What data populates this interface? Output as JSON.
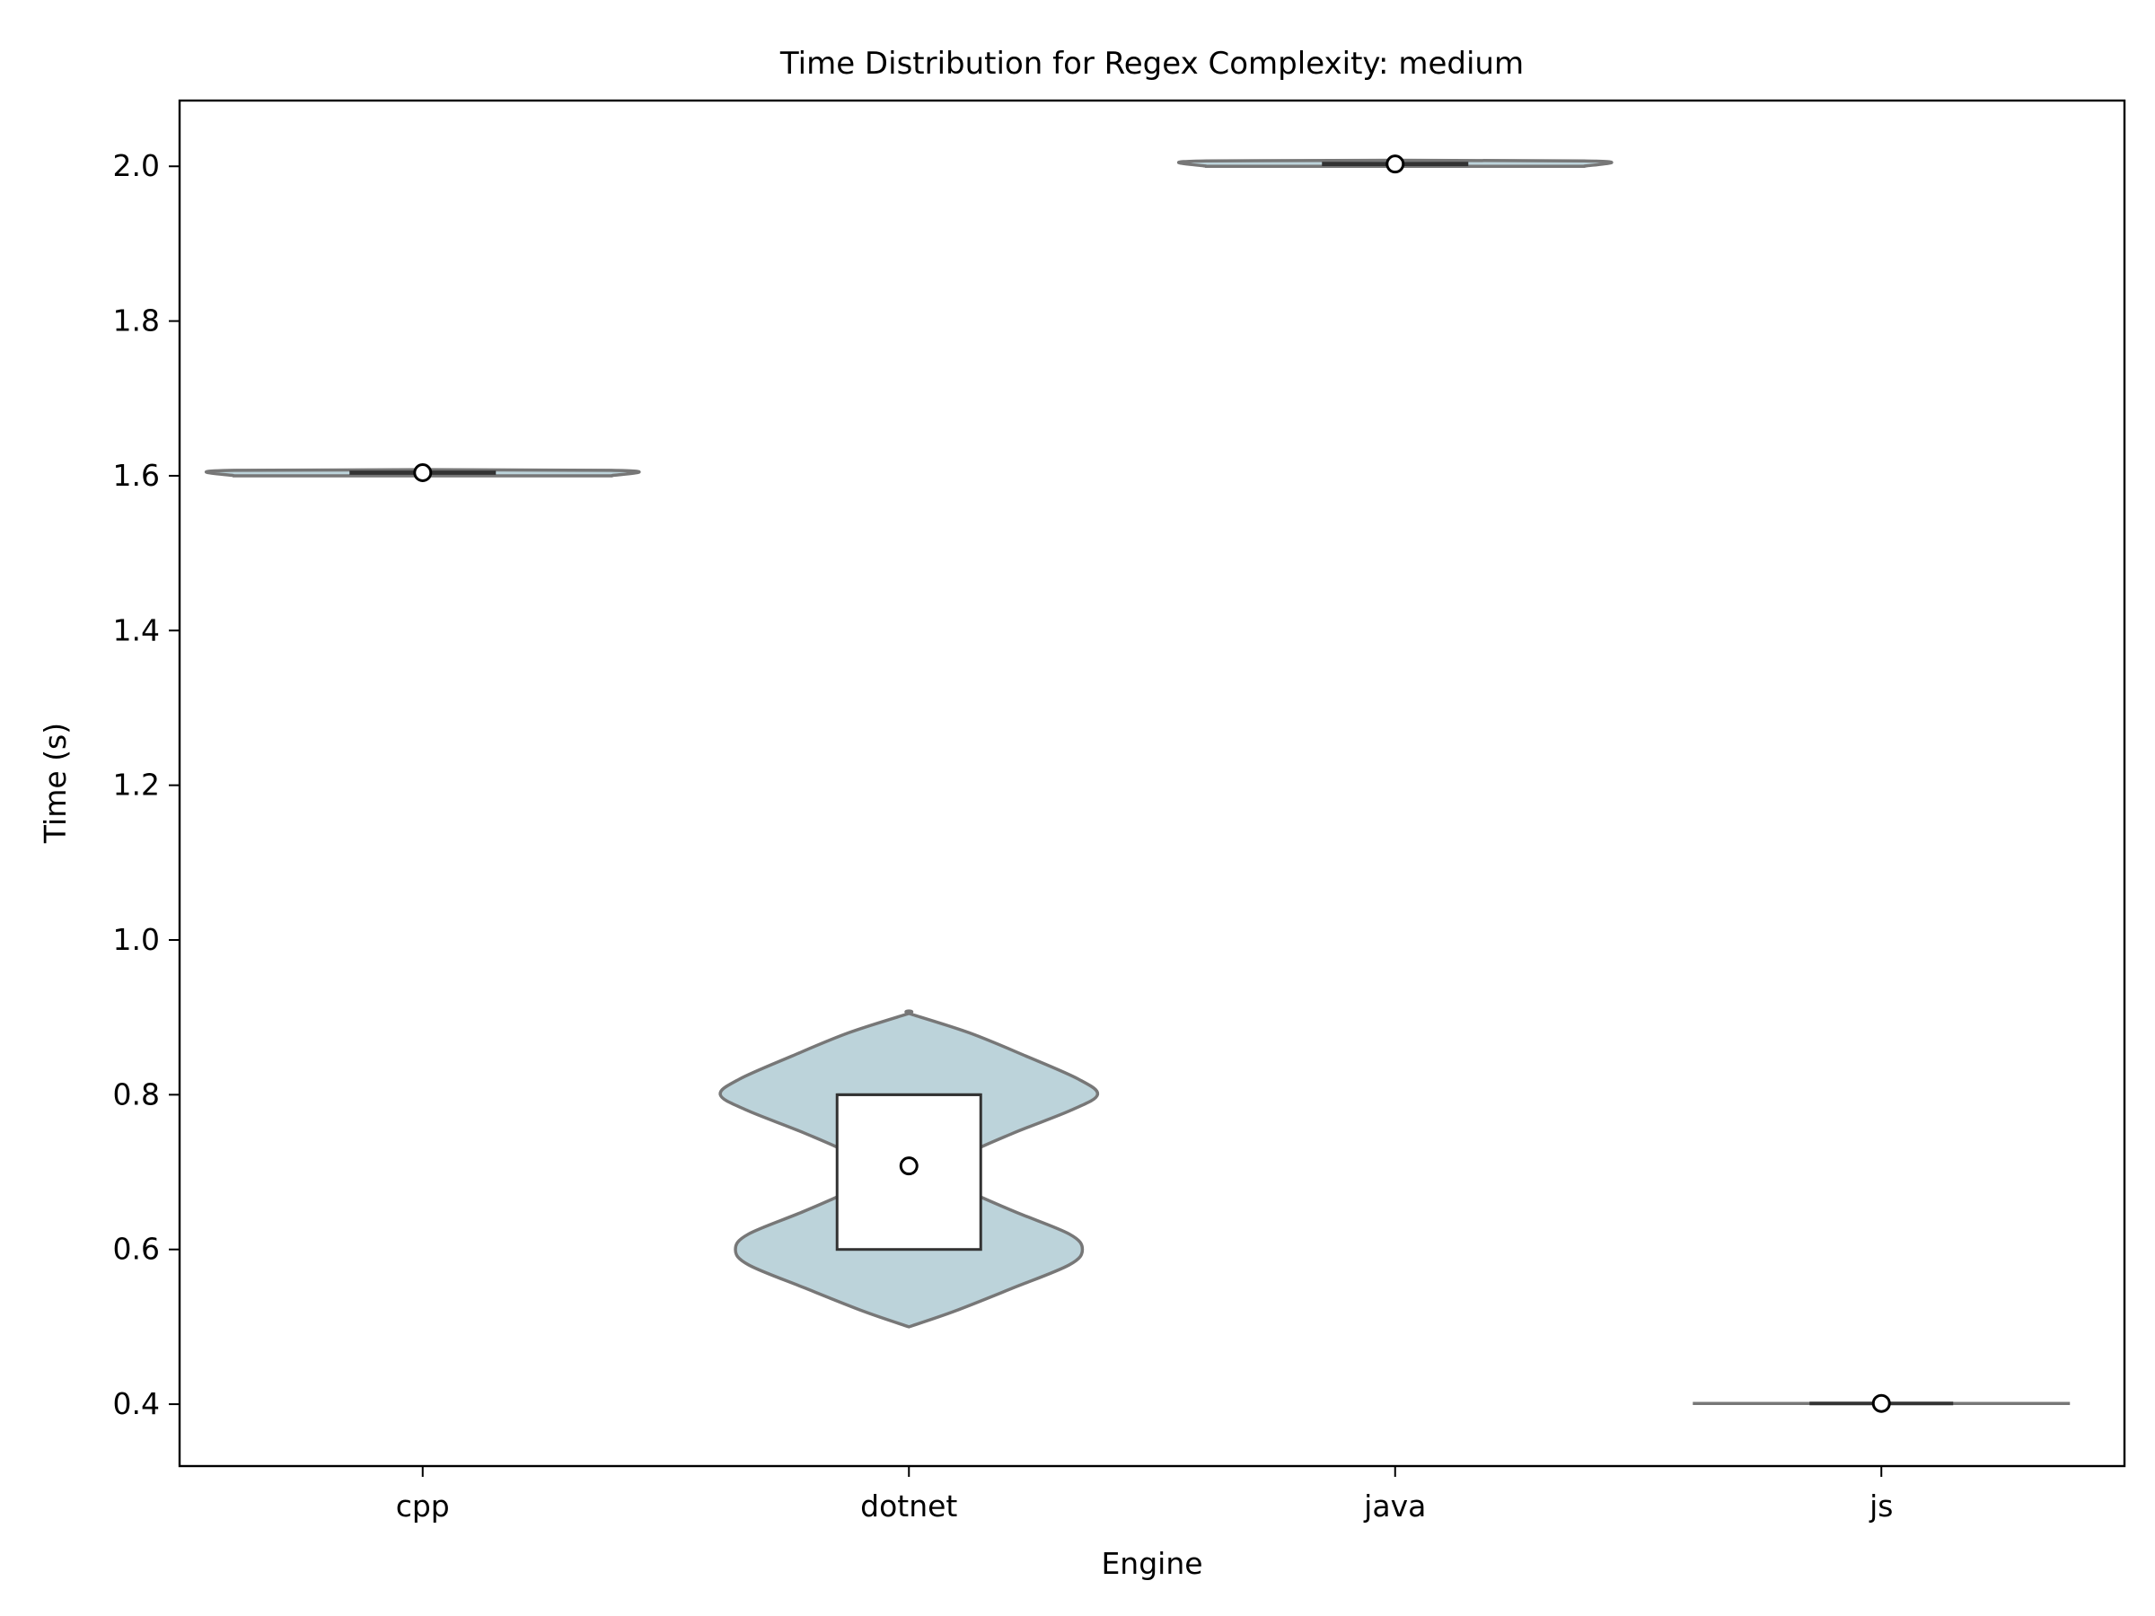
{
  "chart_data": {
    "type": "violin",
    "title": "Time Distribution for Regex Complexity: medium",
    "xlabel": "Engine",
    "ylabel": "Time (s)",
    "categories": [
      "cpp",
      "dotnet",
      "java",
      "js"
    ],
    "ylim": [
      0.32,
      2.085
    ],
    "yticks": [
      "0.4",
      "0.6",
      "0.8",
      "1.0",
      "1.2",
      "1.4",
      "1.6",
      "1.8",
      "2.0"
    ],
    "grid": false,
    "legend": "none",
    "colors": {
      "violin_fill": "#bcd3da",
      "violin_edge": "#777777",
      "box_fill": "#ffffff",
      "box_edge": "#333333",
      "mean_marker_fill": "#ffffff",
      "mean_marker_edge": "#000000"
    },
    "series": [
      {
        "category": "cpp",
        "min": 1.6,
        "max": 1.607,
        "q1": 1.603,
        "median": 1.604,
        "q3": 1.605,
        "mean": 1.604,
        "profile": [
          [
            1.6,
            1.0
          ],
          [
            1.607,
            1.0
          ]
        ]
      },
      {
        "category": "dotnet",
        "min": 0.5,
        "max": 0.905,
        "q1": 0.6,
        "median": 0.8,
        "q3": 0.8,
        "mean": 0.708,
        "profile": [
          [
            0.5,
            0.0
          ],
          [
            0.52,
            0.24
          ],
          [
            0.55,
            0.55
          ],
          [
            0.58,
            0.85
          ],
          [
            0.6,
            0.92
          ],
          [
            0.62,
            0.85
          ],
          [
            0.65,
            0.55
          ],
          [
            0.68,
            0.28
          ],
          [
            0.7,
            0.22
          ],
          [
            0.72,
            0.28
          ],
          [
            0.75,
            0.55
          ],
          [
            0.78,
            0.86
          ],
          [
            0.8,
            1.0
          ],
          [
            0.82,
            0.9
          ],
          [
            0.85,
            0.62
          ],
          [
            0.88,
            0.32
          ],
          [
            0.905,
            0.0
          ]
        ]
      },
      {
        "category": "java",
        "min": 2.0,
        "max": 2.007,
        "q1": 2.002,
        "median": 2.003,
        "q3": 2.004,
        "mean": 2.003,
        "profile": [
          [
            2.0,
            1.0
          ],
          [
            2.007,
            1.0
          ]
        ]
      },
      {
        "category": "js",
        "min": 0.398,
        "max": 0.404,
        "q1": 0.4,
        "median": 0.401,
        "q3": 0.402,
        "mean": 0.401,
        "profile": [
          [
            0.398,
            1.0
          ],
          [
            0.404,
            1.0
          ]
        ]
      }
    ]
  }
}
